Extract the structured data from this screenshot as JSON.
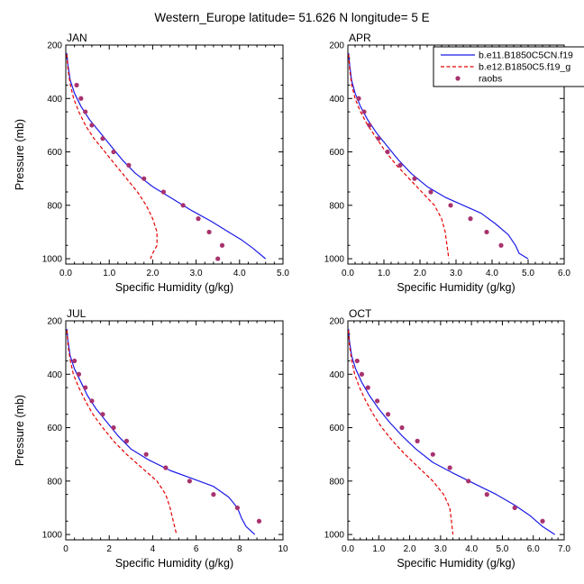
{
  "title": "Western_Europe  latitude= 51.626 N longitude= 5 E",
  "legend": {
    "position": "top-right",
    "entries": [
      {
        "label": "b.e11.B1850C5CN.f19",
        "color": "#1a1ae6",
        "style": "solid"
      },
      {
        "label": "b.e12.B1850C5.f19_g",
        "color": "#e60000",
        "style": "dashed"
      },
      {
        "label": "raobs",
        "color": "#a8326e",
        "style": "marker"
      }
    ]
  },
  "colors": {
    "model1": "#1a1ae6",
    "model2": "#e60000",
    "obs": "#a8326e"
  },
  "chart_data": [
    {
      "type": "line",
      "title": "JAN",
      "xlabel": "Specific Humidity (g/kg)",
      "ylabel": "Pressure (mb)",
      "xlim": [
        0,
        5
      ],
      "ylim": [
        200,
        1020
      ],
      "y_inverted": true,
      "xticks": [
        "0.0",
        "1.0",
        "2.0",
        "3.0",
        "4.0",
        "5.0"
      ],
      "yticks": [
        "200",
        "400",
        "600",
        "800",
        "1000"
      ],
      "series": [
        {
          "name": "b.e11.B1850C5CN.f19",
          "style": "solid",
          "x": [
            0.02,
            0.05,
            0.1,
            0.2,
            0.35,
            0.55,
            0.8,
            1.05,
            1.3,
            1.6,
            2.0,
            2.45,
            2.9,
            3.35,
            3.7,
            4.05,
            4.3,
            4.6
          ],
          "y": [
            230,
            275,
            330,
            380,
            430,
            480,
            530,
            580,
            630,
            680,
            730,
            775,
            820,
            860,
            895,
            930,
            960,
            1000
          ]
        },
        {
          "name": "b.e12.B1850C5.f19_g",
          "style": "dashed",
          "x": [
            0.02,
            0.05,
            0.1,
            0.18,
            0.3,
            0.45,
            0.65,
            0.9,
            1.15,
            1.4,
            1.65,
            1.85,
            2.0,
            2.1,
            2.1,
            2.0,
            1.95
          ],
          "y": [
            235,
            290,
            345,
            400,
            450,
            500,
            550,
            600,
            650,
            700,
            750,
            800,
            850,
            900,
            950,
            980,
            1000
          ]
        },
        {
          "name": "raobs",
          "style": "marker",
          "x": [
            0.25,
            0.35,
            0.45,
            0.6,
            0.85,
            1.1,
            1.45,
            1.8,
            2.25,
            2.7,
            3.05,
            3.3,
            3.6,
            3.5
          ],
          "y": [
            350,
            400,
            450,
            500,
            550,
            600,
            650,
            700,
            750,
            800,
            850,
            900,
            950,
            1000
          ]
        }
      ]
    },
    {
      "type": "line",
      "title": "APR",
      "xlabel": "Specific Humidity (g/kg)",
      "ylabel": "",
      "xlim": [
        0,
        6
      ],
      "ylim": [
        200,
        1020
      ],
      "y_inverted": true,
      "xticks": [
        "0.0",
        "1.0",
        "2.0",
        "3.0",
        "4.0",
        "5.0",
        "6.0"
      ],
      "yticks": [
        "200",
        "400",
        "600",
        "800",
        "1000"
      ],
      "series": [
        {
          "name": "b.e11.B1850C5CN.f19",
          "style": "solid",
          "x": [
            0.02,
            0.05,
            0.1,
            0.2,
            0.35,
            0.55,
            0.8,
            1.1,
            1.4,
            1.75,
            2.2,
            2.7,
            3.2,
            3.7,
            4.1,
            4.45,
            4.65,
            4.75,
            5.0
          ],
          "y": [
            230,
            275,
            330,
            380,
            430,
            480,
            530,
            580,
            630,
            680,
            730,
            770,
            800,
            830,
            870,
            910,
            950,
            980,
            1000
          ]
        },
        {
          "name": "b.e12.B1850C5.f19_g",
          "style": "dashed",
          "x": [
            0.02,
            0.05,
            0.1,
            0.2,
            0.35,
            0.55,
            0.8,
            1.05,
            1.35,
            1.7,
            2.05,
            2.4,
            2.6,
            2.7,
            2.75,
            2.8
          ],
          "y": [
            235,
            290,
            345,
            400,
            450,
            500,
            550,
            600,
            650,
            700,
            750,
            800,
            850,
            900,
            950,
            1000
          ]
        },
        {
          "name": "raobs",
          "style": "marker",
          "x": [
            0.3,
            0.45,
            0.6,
            0.85,
            1.1,
            1.45,
            1.85,
            2.3,
            2.85,
            3.4,
            3.85,
            4.25
          ],
          "y": [
            400,
            450,
            500,
            550,
            600,
            650,
            700,
            750,
            800,
            850,
            900,
            950
          ]
        }
      ]
    },
    {
      "type": "line",
      "title": "JUL",
      "xlabel": "Specific Humidity (g/kg)",
      "ylabel": "Pressure (mb)",
      "xlim": [
        0,
        10
      ],
      "ylim": [
        200,
        1020
      ],
      "y_inverted": true,
      "xticks": [
        "0",
        "2",
        "4",
        "6",
        "8",
        "10"
      ],
      "yticks": [
        "200",
        "400",
        "600",
        "800",
        "1000"
      ],
      "series": [
        {
          "name": "b.e11.B1850C5CN.f19",
          "style": "solid",
          "x": [
            0.05,
            0.1,
            0.2,
            0.4,
            0.7,
            1.0,
            1.4,
            1.9,
            2.4,
            3.0,
            3.8,
            4.8,
            5.8,
            6.8,
            7.5,
            7.9,
            8.1,
            8.3,
            8.7
          ],
          "y": [
            230,
            275,
            330,
            380,
            430,
            480,
            530,
            580,
            630,
            680,
            720,
            760,
            790,
            820,
            860,
            900,
            940,
            970,
            1000
          ]
        },
        {
          "name": "b.e12.B1850C5.f19_g",
          "style": "dashed",
          "x": [
            0.05,
            0.1,
            0.2,
            0.35,
            0.6,
            0.9,
            1.25,
            1.7,
            2.2,
            2.8,
            3.5,
            4.2,
            4.6,
            4.8,
            4.95,
            5.1
          ],
          "y": [
            235,
            290,
            345,
            400,
            450,
            500,
            550,
            600,
            650,
            700,
            750,
            800,
            850,
            900,
            950,
            1000
          ]
        },
        {
          "name": "raobs",
          "style": "marker",
          "x": [
            0.4,
            0.6,
            0.9,
            1.2,
            1.7,
            2.2,
            2.8,
            3.7,
            4.6,
            5.7,
            6.8,
            7.9,
            8.9
          ],
          "y": [
            350,
            400,
            450,
            500,
            550,
            600,
            650,
            700,
            750,
            800,
            850,
            900,
            950
          ]
        }
      ]
    },
    {
      "type": "line",
      "title": "OCT",
      "xlabel": "Specific Humidity (g/kg)",
      "ylabel": "",
      "xlim": [
        0,
        7
      ],
      "ylim": [
        200,
        1020
      ],
      "y_inverted": true,
      "xticks": [
        "0.0",
        "1.0",
        "2.0",
        "3.0",
        "4.0",
        "5.0",
        "6.0",
        "7.0"
      ],
      "yticks": [
        "200",
        "400",
        "600",
        "800",
        "1000"
      ],
      "series": [
        {
          "name": "b.e11.B1850C5CN.f19",
          "style": "solid",
          "x": [
            0.02,
            0.05,
            0.12,
            0.25,
            0.45,
            0.7,
            1.0,
            1.35,
            1.75,
            2.2,
            2.75,
            3.4,
            4.1,
            4.8,
            5.4,
            5.9,
            6.3,
            6.7
          ],
          "y": [
            230,
            275,
            330,
            380,
            430,
            480,
            530,
            580,
            630,
            680,
            730,
            770,
            810,
            850,
            890,
            930,
            970,
            1000
          ]
        },
        {
          "name": "b.e12.B1850C5.f19_g",
          "style": "dashed",
          "x": [
            0.02,
            0.05,
            0.12,
            0.22,
            0.38,
            0.58,
            0.82,
            1.1,
            1.45,
            1.85,
            2.3,
            2.75,
            3.1,
            3.3,
            3.35,
            3.4
          ],
          "y": [
            235,
            290,
            345,
            400,
            450,
            500,
            550,
            600,
            650,
            700,
            750,
            800,
            850,
            900,
            950,
            1000
          ]
        },
        {
          "name": "raobs",
          "style": "marker",
          "x": [
            0.3,
            0.45,
            0.65,
            0.95,
            1.3,
            1.75,
            2.25,
            2.75,
            3.3,
            3.9,
            4.5,
            5.4,
            6.3
          ],
          "y": [
            350,
            400,
            450,
            500,
            550,
            600,
            650,
            700,
            750,
            800,
            850,
            900,
            950
          ]
        }
      ]
    }
  ]
}
